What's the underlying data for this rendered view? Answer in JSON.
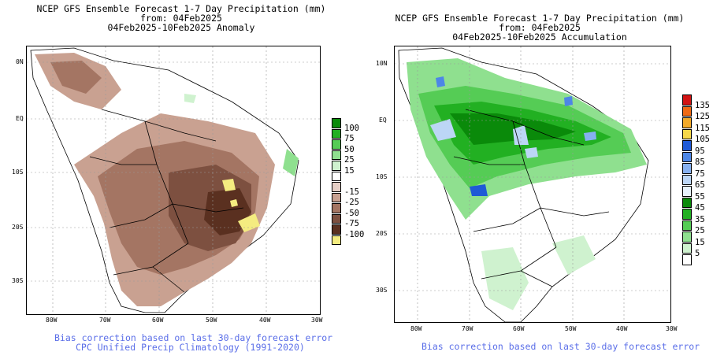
{
  "left_panel": {
    "title_line1": "NCEP GFS Ensemble Forecast 1-7 Day Precipitation (mm)",
    "title_line2": "from: 04Feb2025",
    "title_line3": "04Feb2025-10Feb2025 Anomaly",
    "lat_labels": [
      "0N",
      "EQ",
      "10S",
      "20S",
      "30S"
    ],
    "lon_labels": [
      "80W",
      "70W",
      "60W",
      "50W",
      "40W",
      "30W"
    ],
    "legend": [
      {
        "label": "100",
        "color": "#0a8a0a"
      },
      {
        "label": "75",
        "color": "#22b022"
      },
      {
        "label": "50",
        "color": "#55cc55"
      },
      {
        "label": "25",
        "color": "#8fe08f"
      },
      {
        "label": "15",
        "color": "#cff2cf"
      },
      {
        "label": "",
        "color": "#ffffff"
      },
      {
        "label": "-15",
        "color": "#e6cfc6"
      },
      {
        "label": "-25",
        "color": "#c9a191"
      },
      {
        "label": "-50",
        "color": "#a47563"
      },
      {
        "label": "-75",
        "color": "#7d5040"
      },
      {
        "label": "-100",
        "color": "#5a3020"
      },
      {
        "label": "",
        "color": "#f4ec80"
      }
    ],
    "footnote_line1": "Bias correction based on last 30-day forecast error",
    "footnote_line2": "CPC Unified Precip Climatology (1991-2020)"
  },
  "right_panel": {
    "title_line1": "NCEP GFS Ensemble Forecast 1-7 Day Precipitation (mm)",
    "title_line2": "from: 04Feb2025",
    "title_line3": "04Feb2025-10Feb2025 Accumulation",
    "lat_labels": [
      "10N",
      "EQ",
      "10S",
      "20S",
      "30S"
    ],
    "lon_labels": [
      "80W",
      "70W",
      "60W",
      "50W",
      "40W",
      "30W"
    ],
    "legend": [
      {
        "label": "135",
        "color": "#d21414"
      },
      {
        "label": "125",
        "color": "#f06a14"
      },
      {
        "label": "115",
        "color": "#f2aa2a"
      },
      {
        "label": "105",
        "color": "#f6d84a"
      },
      {
        "label": "95",
        "color": "#1f5ad6"
      },
      {
        "label": "85",
        "color": "#4d86e6"
      },
      {
        "label": "75",
        "color": "#86b0f0"
      },
      {
        "label": "65",
        "color": "#bcd6f6"
      },
      {
        "label": "55",
        "color": "#e8f2fc"
      },
      {
        "label": "45",
        "color": "#0a8a0a"
      },
      {
        "label": "35",
        "color": "#22b022"
      },
      {
        "label": "25",
        "color": "#55cc55"
      },
      {
        "label": "15",
        "color": "#8fe08f"
      },
      {
        "label": "5",
        "color": "#cff2cf"
      },
      {
        "label": "",
        "color": "#ffffff"
      }
    ],
    "footnote_line1": "Bias correction based on last 30-day forecast error"
  }
}
